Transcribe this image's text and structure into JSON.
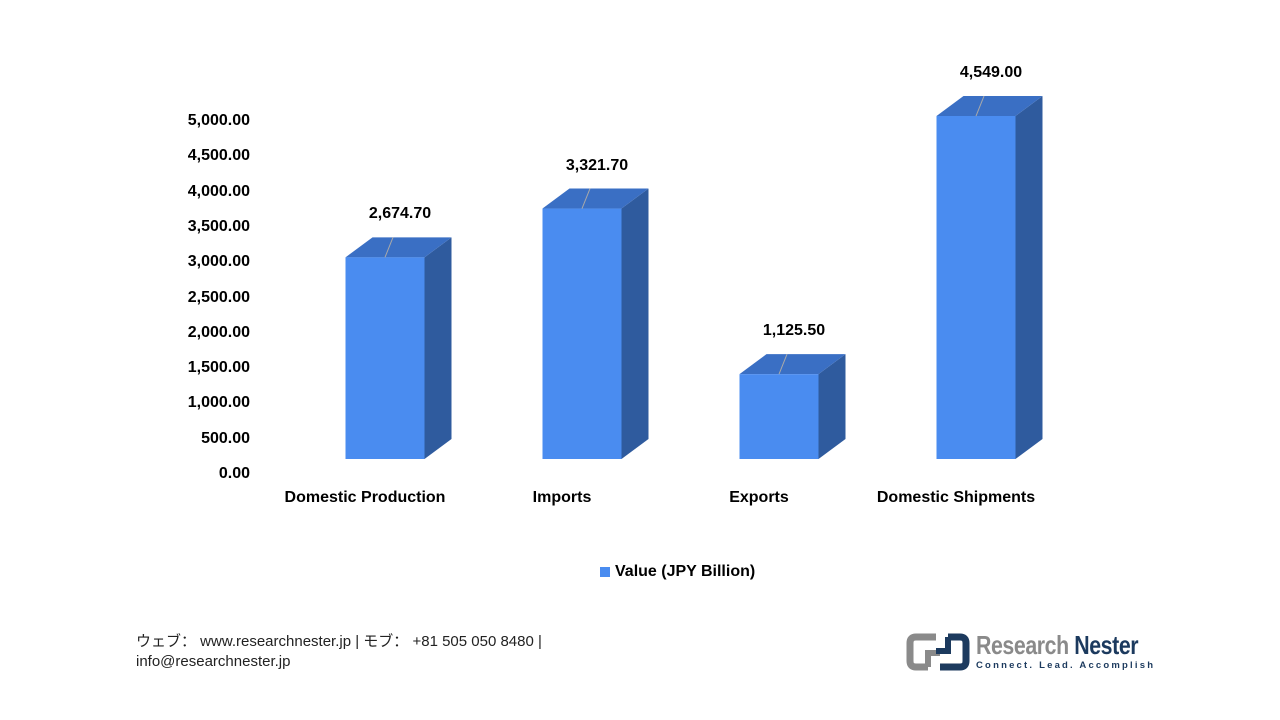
{
  "chart_data": {
    "type": "bar",
    "style": "3d-column",
    "title": "",
    "xlabel": "",
    "ylabel": "",
    "categories": [
      "Domestic Production",
      "Imports",
      "Exports",
      "Domestic Shipments"
    ],
    "series": [
      {
        "name": "Value (JPY Billion)",
        "values": [
          2674.7,
          3321.7,
          1125.5,
          4549.0
        ],
        "color": "#4a8cf0"
      }
    ],
    "data_labels": [
      "2,674.70",
      "3,321.70",
      "1,125.50",
      "4,549.00"
    ],
    "ylim": [
      0,
      5000
    ],
    "yticks": [
      "0.00",
      "500.00",
      "1,000.00",
      "1,500.00",
      "2,000.00",
      "2,500.00",
      "3,000.00",
      "3,500.00",
      "4,000.00",
      "4,500.00",
      "5,000.00"
    ],
    "grid": false,
    "legend_position": "bottom"
  },
  "legend": {
    "label": "Value (JPY Billion)"
  },
  "footer": {
    "line1": "ウェブ： www.researchnester.jp  | モブ： +81 505 050 8480 |",
    "line2": "info@researchnester.jp"
  },
  "logo": {
    "brand_part1": "Research",
    "brand_part2": "Nester",
    "tagline": "Connect. Lead. Accomplish"
  },
  "colors": {
    "bar_front": "#4a8cf0",
    "bar_top": "#3a6fc4",
    "bar_side": "#2f5b9e",
    "logo_navy": "#1c3a5e",
    "logo_gray": "#8a8a8a"
  }
}
